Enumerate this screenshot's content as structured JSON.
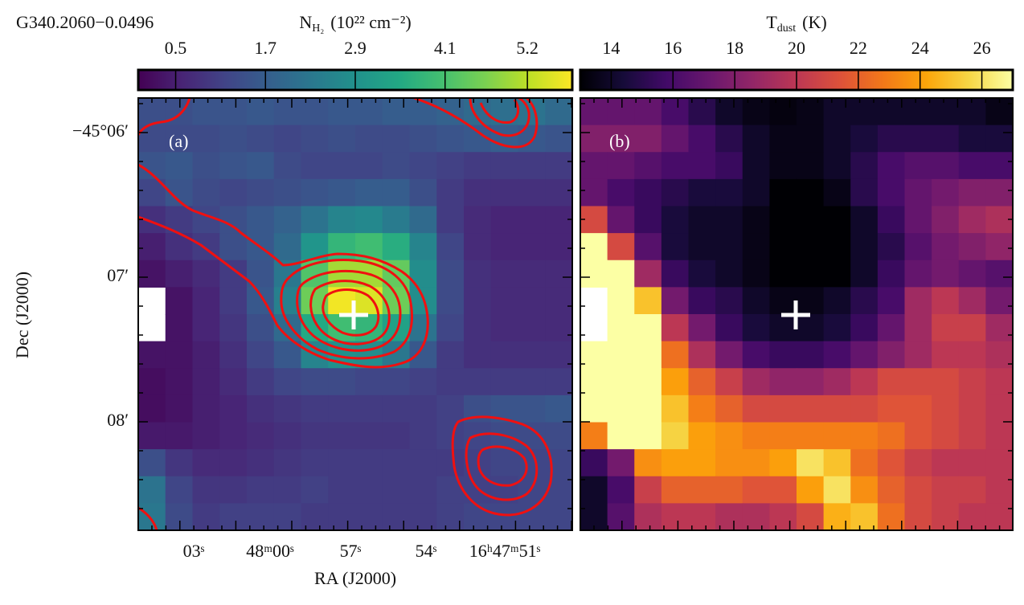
{
  "chart_data": [
    {
      "type": "heatmap",
      "title": "G340.2060−0.0496",
      "panel_label": "(a)",
      "colorbar_label": {
        "symbol": "N",
        "subscript": "H₂",
        "unit": "(10²² cm⁻²)"
      },
      "colormap": "viridis",
      "clim": [
        0.0,
        5.8
      ],
      "cticks": [
        0.5,
        1.7,
        2.9,
        4.1,
        5.2
      ],
      "xlabel": "RA (J2000)",
      "ylabel": "Dec (J2000)",
      "xtick_labels": [
        "03ˢ",
        "48ᵐ00ˢ",
        "57ˢ",
        "54ˢ",
        "16ʰ47ᵐ51ˢ"
      ],
      "ytick_labels": [
        "−45°06′",
        "07′",
        "08′"
      ],
      "values": [
        [
          1.4,
          1.4,
          1.5,
          1.5,
          1.6,
          1.5,
          1.5,
          1.6,
          1.6,
          1.7,
          1.7,
          1.8,
          2.0,
          2.1,
          2.2,
          2.0
        ],
        [
          1.3,
          1.3,
          1.3,
          1.4,
          1.3,
          1.2,
          1.3,
          1.4,
          1.3,
          1.3,
          1.4,
          1.5,
          1.6,
          1.7,
          1.6,
          1.5
        ],
        [
          1.5,
          1.6,
          1.4,
          1.5,
          1.6,
          1.3,
          1.2,
          1.2,
          1.2,
          1.3,
          1.2,
          1.1,
          1.0,
          1.0,
          1.0,
          1.0
        ],
        [
          1.2,
          1.5,
          1.3,
          1.2,
          1.3,
          1.4,
          1.5,
          1.6,
          1.7,
          1.7,
          1.4,
          1.0,
          0.8,
          0.8,
          0.8,
          0.8
        ],
        [
          0.8,
          1.0,
          1.2,
          1.4,
          1.6,
          1.8,
          2.2,
          2.6,
          2.7,
          2.4,
          2.0,
          1.0,
          0.7,
          0.6,
          0.6,
          0.6
        ],
        [
          0.5,
          0.8,
          1.0,
          1.4,
          1.6,
          2.0,
          3.0,
          3.8,
          4.0,
          3.6,
          2.6,
          1.2,
          0.7,
          0.6,
          0.6,
          0.6
        ],
        [
          0.3,
          0.5,
          0.7,
          1.0,
          1.5,
          2.3,
          4.2,
          5.0,
          5.0,
          4.4,
          2.8,
          1.3,
          0.8,
          0.7,
          0.7,
          0.7
        ],
        [
          null,
          0.3,
          0.6,
          1.0,
          1.6,
          2.5,
          4.5,
          5.7,
          5.5,
          4.5,
          2.8,
          1.3,
          0.8,
          0.7,
          0.7,
          0.7
        ],
        [
          null,
          0.3,
          0.6,
          0.9,
          1.4,
          2.0,
          3.5,
          4.0,
          3.8,
          3.3,
          2.2,
          1.2,
          0.8,
          0.7,
          0.7,
          0.7
        ],
        [
          0.3,
          0.3,
          0.5,
          0.8,
          1.2,
          1.6,
          2.6,
          2.9,
          2.8,
          2.3,
          1.6,
          1.0,
          0.8,
          0.8,
          0.8,
          0.8
        ],
        [
          0.2,
          0.3,
          0.5,
          0.7,
          1.0,
          1.2,
          1.3,
          1.3,
          1.2,
          1.2,
          1.1,
          1.0,
          1.0,
          1.0,
          1.0,
          1.0
        ],
        [
          0.2,
          0.3,
          0.5,
          0.6,
          0.8,
          0.9,
          1.0,
          1.0,
          1.0,
          1.0,
          1.0,
          1.1,
          1.4,
          1.5,
          1.5,
          1.6
        ],
        [
          0.4,
          0.4,
          0.5,
          0.6,
          0.7,
          0.8,
          0.9,
          0.9,
          0.9,
          0.9,
          1.0,
          1.1,
          1.2,
          1.3,
          1.3,
          1.3
        ],
        [
          1.4,
          0.9,
          0.7,
          0.7,
          0.8,
          0.9,
          1.0,
          1.0,
          1.0,
          1.0,
          1.0,
          1.0,
          1.1,
          1.2,
          1.2,
          1.2
        ],
        [
          2.2,
          1.2,
          0.9,
          0.9,
          1.0,
          1.0,
          1.1,
          1.0,
          1.0,
          1.0,
          1.0,
          1.1,
          1.1,
          1.1,
          1.2,
          1.2
        ],
        [
          2.3,
          1.3,
          1.0,
          1.1,
          1.1,
          1.1,
          1.0,
          1.0,
          1.0,
          1.0,
          1.0,
          1.1,
          1.2,
          1.2,
          1.2,
          1.2
        ]
      ]
    },
    {
      "type": "heatmap",
      "panel_label": "(b)",
      "colorbar_label": {
        "symbol": "T",
        "subscript": "dust",
        "unit": "(K)"
      },
      "colormap": "inferno",
      "clim": [
        13,
        27
      ],
      "cticks": [
        14,
        16,
        18,
        20,
        22,
        24,
        26
      ],
      "values": [
        [
          17,
          17,
          17,
          16,
          15,
          14,
          13.5,
          13.3,
          13.5,
          14,
          14,
          14,
          14,
          14,
          14,
          13.5
        ],
        [
          18,
          18,
          18,
          17,
          16,
          15,
          14,
          13.5,
          13.5,
          14,
          14.5,
          15,
          15,
          15,
          14.5,
          14.5
        ],
        [
          17,
          17,
          16.5,
          16,
          16,
          15.5,
          14,
          13.5,
          13.5,
          14,
          15,
          16,
          16.5,
          16.5,
          16,
          16
        ],
        [
          17,
          16,
          15.5,
          15,
          14.5,
          14.5,
          14,
          13,
          13,
          13.5,
          15,
          16,
          17,
          17.5,
          18,
          18
        ],
        [
          21,
          17,
          15.5,
          14.5,
          14,
          14,
          13.5,
          13,
          13,
          13,
          14,
          15.5,
          17,
          18,
          19,
          19.5
        ],
        [
          27,
          21,
          16.5,
          14.5,
          14,
          14,
          13.5,
          13,
          13,
          13,
          14,
          15,
          16.5,
          17.5,
          18,
          18.5
        ],
        [
          27,
          27,
          19,
          15.5,
          14.5,
          14,
          13.5,
          13,
          13,
          13,
          14,
          15.5,
          17,
          17.5,
          17,
          16.5
        ],
        [
          null,
          27,
          25,
          17.5,
          15.5,
          15,
          14,
          13.5,
          13.5,
          14,
          15,
          16,
          19,
          20,
          19,
          17.5
        ],
        [
          null,
          27,
          27,
          20,
          17.5,
          15.5,
          14.5,
          14,
          14,
          14.5,
          15.5,
          17,
          19,
          20.5,
          20.5,
          19
        ],
        [
          27,
          27,
          27,
          22.5,
          19.5,
          17.5,
          16,
          15.5,
          15.5,
          16,
          17,
          18,
          19,
          20,
          20,
          19.5
        ],
        [
          27,
          27,
          27,
          24,
          22,
          20.5,
          19,
          18.5,
          18.5,
          19,
          20,
          21,
          21,
          21,
          20.5,
          20
        ],
        [
          27,
          27,
          27,
          25,
          23,
          22,
          21,
          21,
          21,
          21,
          21,
          21.5,
          21.5,
          21,
          20.5,
          20
        ],
        [
          23,
          27,
          27,
          25.5,
          24,
          23.5,
          23,
          23,
          23,
          23,
          23,
          22.5,
          21.5,
          21,
          20.5,
          20
        ],
        [
          15.5,
          17.5,
          23.5,
          24,
          24,
          23.5,
          23.5,
          24,
          26,
          25,
          22.5,
          21.5,
          20.5,
          20,
          20,
          20
        ],
        [
          14,
          16,
          20.5,
          22,
          22,
          22,
          21.5,
          21.5,
          24,
          26,
          23.5,
          22,
          21,
          20.5,
          20.5,
          20
        ],
        [
          14,
          16.5,
          19.5,
          20,
          20,
          19.5,
          19.5,
          20,
          21,
          24.5,
          25,
          22.5,
          21,
          20.5,
          20,
          20
        ]
      ]
    }
  ]
}
